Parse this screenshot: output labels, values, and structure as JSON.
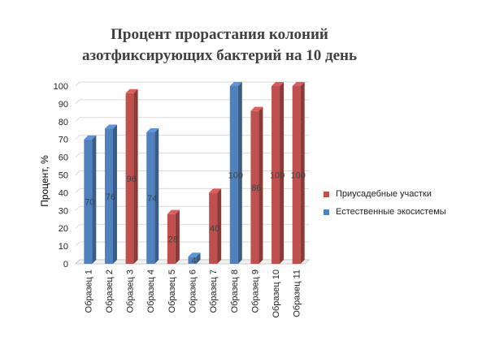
{
  "chart_data": {
    "type": "bar",
    "title_line1": "Процент  прорастания колоний",
    "title_line2": "азотфиксирующих бактерий на 10 день",
    "ylabel": "Процент, %",
    "xlabel": "",
    "ylim": [
      0,
      100
    ],
    "y_ticks": [
      "0",
      "10",
      "20",
      "30",
      "40",
      "50",
      "60",
      "70",
      "80",
      "90",
      "100"
    ],
    "grid": true,
    "legend_position": "right",
    "categories": [
      "Образец 1",
      "Образец 2",
      "Образец 3",
      "Образец 4",
      "Образец 5",
      "Образец 6",
      "Образец 7",
      "Образец 8",
      "Образец 9",
      "Образец 10",
      "Образец 11"
    ],
    "values": [
      70,
      76,
      96,
      74,
      28,
      4,
      40,
      100,
      86,
      100,
      100
    ],
    "data_labels": [
      "70",
      "76",
      "96",
      "74",
      "28",
      "4",
      "40",
      "100",
      "86",
      "100",
      "100"
    ],
    "series_index": [
      1,
      1,
      0,
      1,
      0,
      1,
      0,
      1,
      0,
      0,
      0
    ],
    "series": [
      {
        "name": "Приусадебные участки",
        "color": "#c0504d"
      },
      {
        "name": "Естественные экосистемы",
        "color": "#4f81bd"
      }
    ]
  }
}
